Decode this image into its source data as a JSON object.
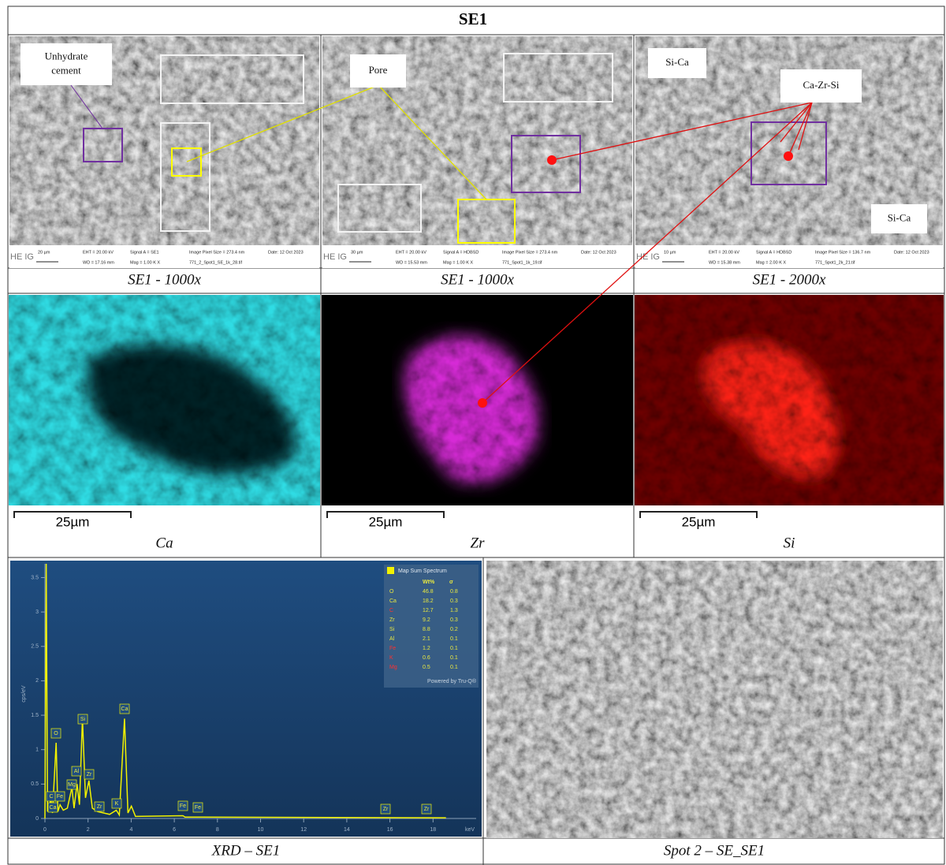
{
  "title": "SE1",
  "sem_panels": [
    {
      "caption": "SE1 - 1000x",
      "info": [
        "20 µm",
        "EHT = 20.00 kV",
        "Signal A = SE1",
        "Image Pixel Size = 273.4 nm",
        "Date: 12 Oct 2023",
        "WD = 17.16 mm",
        "Mag =  1.00 K X",
        "771_2_Spot1_SE_1k_28.tif"
      ]
    },
    {
      "caption": "SE1 - 1000x",
      "info": [
        "30 µm",
        "EHT = 20.00 kV",
        "Signal A = HDBSD",
        "Image Pixel Size = 273.4 nm",
        "Date: 12 Oct 2023",
        "WD = 15.53 mm",
        "Mag =  1.00 K X",
        "771_Spot1_1k_19.tif"
      ]
    },
    {
      "caption": "SE1 - 2000x",
      "info": [
        "10 µm",
        "EHT = 20.00 kV",
        "Signal A = HDBSD",
        "Image Pixel Size = 136.7 nm",
        "Date: 12 Oct 2023",
        "WD = 15.38 mm",
        "Mag =  2.00 K X",
        "771_Spot1_2k_21.tif"
      ]
    }
  ],
  "logo": "HE IG",
  "annotations": {
    "unhydrate": [
      "Unhydrate",
      "cement"
    ],
    "pore": "Pore",
    "si_ca_1": "Si-Ca",
    "ca_zr_si": "Ca-Zr-Si",
    "si_ca_2": "Si-Ca"
  },
  "maps": [
    {
      "element": "Ca",
      "scale": "25µm"
    },
    {
      "element": "Zr",
      "scale": "25µm"
    },
    {
      "element": "Si",
      "scale": "25µm"
    }
  ],
  "spectrum": {
    "caption": "XRD – SE1",
    "x_label": "keV",
    "y_label": "cps/eV",
    "color": "#f2f200",
    "xlim": [
      0,
      20
    ],
    "ylim": [
      0,
      3.7
    ],
    "xticks": [
      0,
      2,
      4,
      6,
      8,
      10,
      12,
      14,
      16,
      18
    ],
    "yticks": [
      0,
      0.5,
      1,
      1.5,
      2,
      2.5,
      3,
      3.5
    ],
    "x": [
      0,
      0.06,
      0.12,
      0.28,
      0.35,
      0.52,
      0.6,
      0.7,
      0.85,
      1.04,
      1.25,
      1.35,
      1.49,
      1.6,
      1.74,
      1.88,
      2.04,
      2.2,
      2.45,
      3.0,
      3.31,
      3.45,
      3.69,
      3.85,
      4.01,
      4.2,
      6.4,
      6.5,
      18.6
    ],
    "values": [
      0,
      3.7,
      0.1,
      0.28,
      0.08,
      1.1,
      0.1,
      0.2,
      0.12,
      0.15,
      0.45,
      0.15,
      0.5,
      0.2,
      1.45,
      0.3,
      0.55,
      0.15,
      0.1,
      0.06,
      0.12,
      0.05,
      1.45,
      0.08,
      0.18,
      0.03,
      0.04,
      0.02,
      0.01
    ],
    "peak_labels": [
      "O",
      "Si",
      "Ca",
      "Al",
      "Zr",
      "Mg",
      "C",
      "Fe",
      "Ca",
      "Zr",
      "K",
      "Fe",
      "Fe",
      "Zr",
      "Zr"
    ],
    "legend": {
      "title": "Map Sum Spectrum",
      "headers": [
        "Wt%",
        "σ"
      ],
      "rows": [
        {
          "element": "O",
          "wt": 46.8,
          "sigma": 0.8,
          "color": "#e8e840"
        },
        {
          "element": "Ca",
          "wt": 18.2,
          "sigma": 0.3,
          "color": "#e8e840"
        },
        {
          "element": "C",
          "wt": 12.7,
          "sigma": 1.3,
          "color": "#ff3030"
        },
        {
          "element": "Zr",
          "wt": 9.2,
          "sigma": 0.3,
          "color": "#e8e840"
        },
        {
          "element": "Si",
          "wt": 8.8,
          "sigma": 0.2,
          "color": "#e8e840"
        },
        {
          "element": "Al",
          "wt": 2.1,
          "sigma": 0.1,
          "color": "#e8e840"
        },
        {
          "element": "Fe",
          "wt": 1.2,
          "sigma": 0.1,
          "color": "#ff3030"
        },
        {
          "element": "K",
          "wt": 0.6,
          "sigma": 0.1,
          "color": "#ff3030"
        },
        {
          "element": "Mg",
          "wt": 0.5,
          "sigma": 0.1,
          "color": "#ff3030"
        }
      ],
      "footer": "Powered by Tru-Q®"
    }
  },
  "spot_caption": "Spot 2 – SE_SE1"
}
